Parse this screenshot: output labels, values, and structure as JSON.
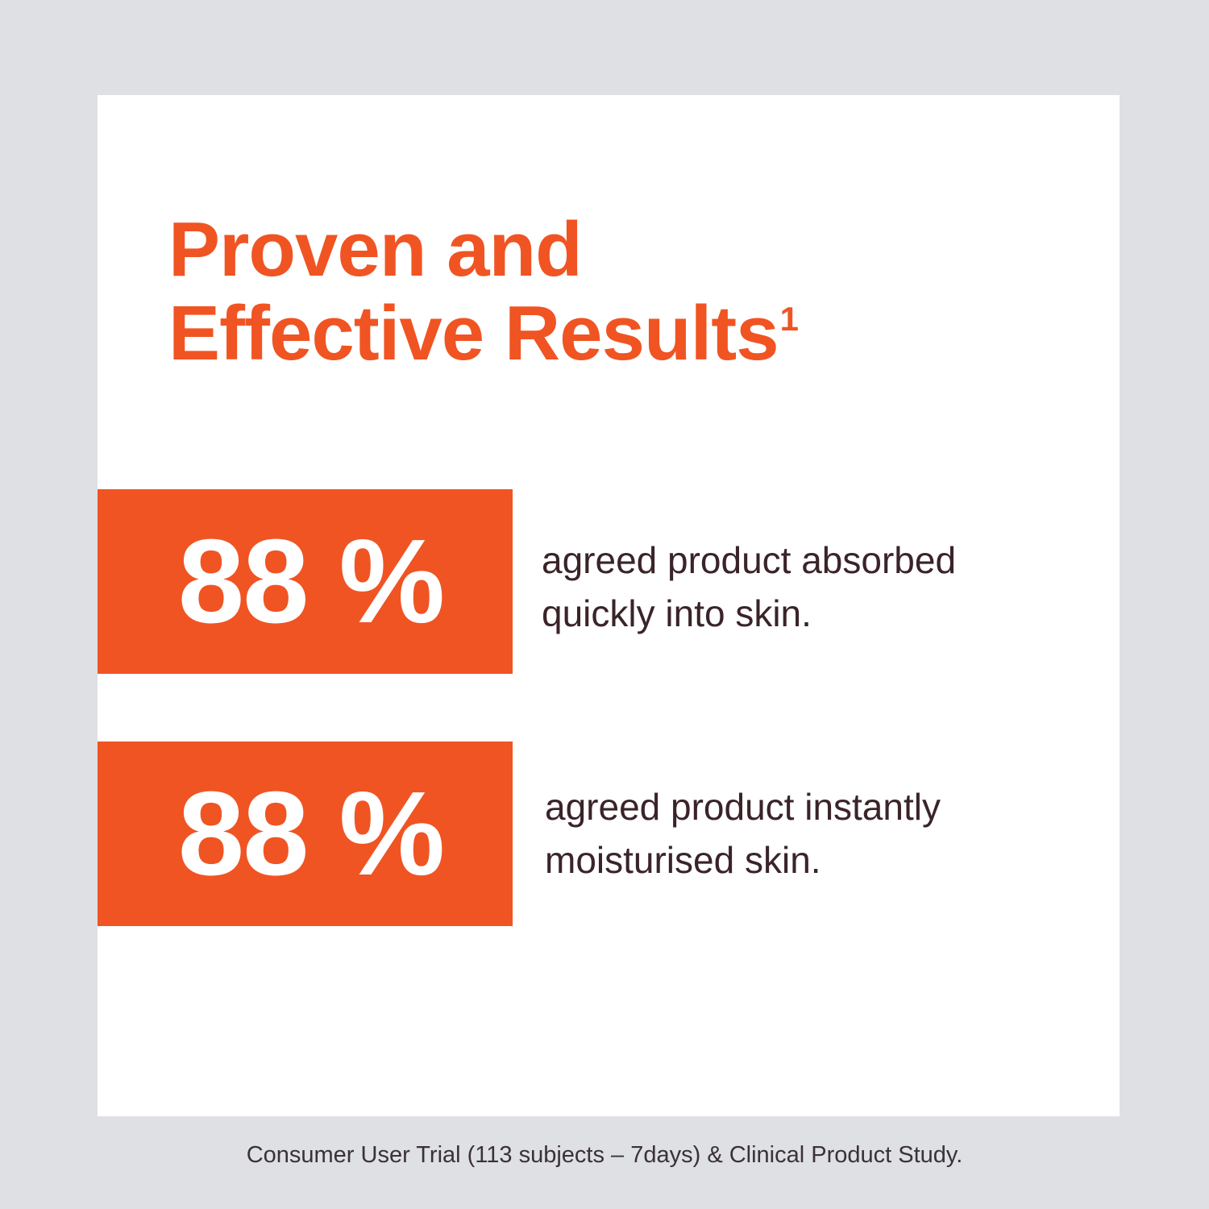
{
  "colors": {
    "accent": "#f05423",
    "page_background": "#dfe0e4",
    "card_background": "#ffffff",
    "body_text": "#3a2429"
  },
  "headline": {
    "line1": "Proven and",
    "line2": "Effective Results",
    "superscript": "1"
  },
  "stats": [
    {
      "value": "88 %",
      "line1": "agreed product absorbed",
      "line2": "quickly into skin."
    },
    {
      "value": "88 %",
      "line1": "agreed product instantly",
      "line2": "moisturised skin."
    }
  ],
  "footnote": "Consumer User Trial (113 subjects – 7days) & Clinical Product Study."
}
